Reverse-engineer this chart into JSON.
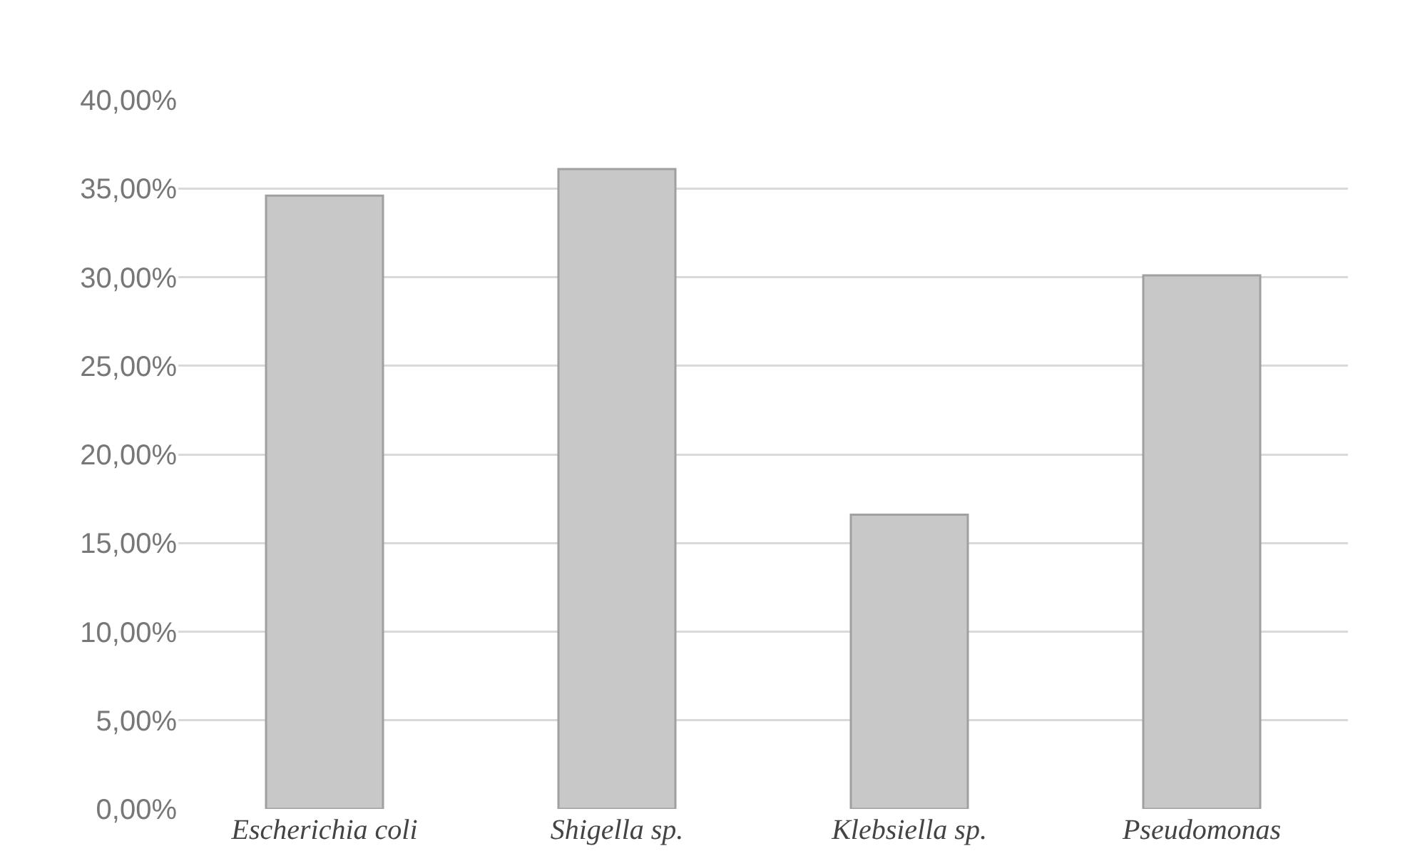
{
  "chart_data": {
    "type": "bar",
    "categories": [
      "Escherichia coli",
      "Shigella sp.",
      "Klebsiella sp.",
      "Pseudomonas"
    ],
    "values": [
      34.6,
      36.1,
      16.6,
      30.1
    ],
    "color": "#c8c8c8",
    "ylim": [
      0,
      40
    ],
    "yticks": [
      {
        "value": 0,
        "label": "0,00%"
      },
      {
        "value": 5,
        "label": "5,00%"
      },
      {
        "value": 10,
        "label": "10,00%"
      },
      {
        "value": 15,
        "label": "15,00%"
      },
      {
        "value": 20,
        "label": "20,00%"
      },
      {
        "value": 25,
        "label": "25,00%"
      },
      {
        "value": 30,
        "label": "30,00%"
      },
      {
        "value": 35,
        "label": "35,00%"
      },
      {
        "value": 40,
        "label": "40,00%"
      }
    ],
    "grid": "y",
    "legend": false
  }
}
